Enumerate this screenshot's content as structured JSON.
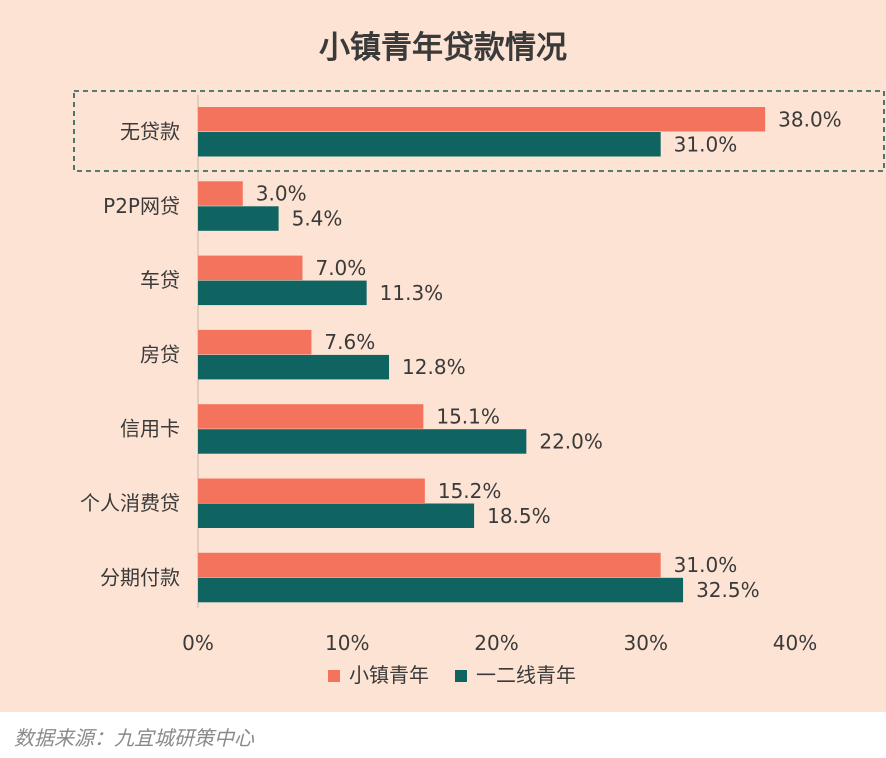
{
  "chart_data": {
    "type": "bar",
    "orientation": "horizontal",
    "title": "小镇青年贷款情况",
    "categories": [
      "无贷款",
      "P2P网贷",
      "车贷",
      "房贷",
      "信用卡",
      "个人消费贷",
      "分期付款"
    ],
    "series": [
      {
        "name": "小镇青年",
        "color": "#f4735d",
        "values": [
          38.0,
          3.0,
          7.0,
          7.6,
          15.1,
          15.2,
          31.0
        ],
        "labels": [
          "38.0%",
          "3.0%",
          "7.0%",
          "7.6%",
          "15.1%",
          "15.2%",
          "31.0%"
        ]
      },
      {
        "name": "一二线青年",
        "color": "#0f6461",
        "values": [
          31.0,
          5.4,
          11.3,
          12.8,
          22.0,
          18.5,
          32.5
        ],
        "labels": [
          "31.0%",
          "5.4%",
          "11.3%",
          "12.8%",
          "22.0%",
          "18.5%",
          "32.5%"
        ]
      }
    ],
    "xlim": [
      0,
      40
    ],
    "xticks": [
      0,
      10,
      20,
      30,
      40
    ],
    "xtick_labels": [
      "0%",
      "10%",
      "20%",
      "30%",
      "40%"
    ],
    "xlabel": "",
    "ylabel": "",
    "grid": false,
    "legend_position": "bottom",
    "highlighted_category": "无贷款"
  },
  "source_note": "数据来源：九宜城研策中心"
}
